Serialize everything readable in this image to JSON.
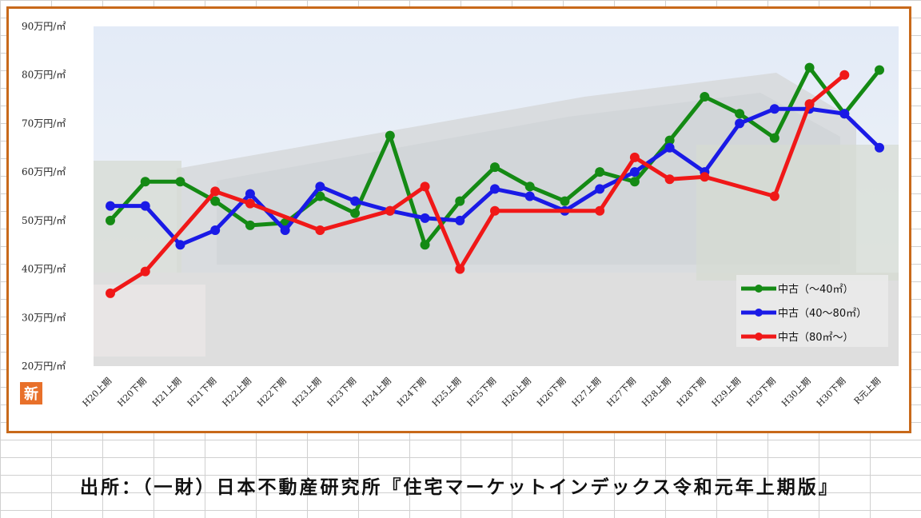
{
  "chart_data": {
    "type": "line",
    "categories": [
      "H20上期",
      "H20下期",
      "H21上期",
      "H21下期",
      "H22上期",
      "H22下期",
      "H23上期",
      "H23下期",
      "H24上期",
      "H24下期",
      "H25上期",
      "H25下期",
      "H26上期",
      "H26下期",
      "H27上期",
      "H27下期",
      "H28上期",
      "H28下期",
      "H29上期",
      "H29下期",
      "H30上期",
      "H30下期",
      "R元上期"
    ],
    "y_ticks": [
      "20万円/㎡",
      "30万円/㎡",
      "40万円/㎡",
      "50万円/㎡",
      "60万円/㎡",
      "70万円/㎡",
      "80万円/㎡",
      "90万円/㎡"
    ],
    "ylim": [
      20,
      90
    ],
    "legend_position": "right",
    "series": [
      {
        "name": "中古（～40㎡）",
        "color": "#148a14",
        "values": [
          50,
          58,
          58,
          54,
          49,
          49.5,
          55,
          51.5,
          67.5,
          45,
          54,
          61,
          57,
          54,
          60,
          58,
          66.5,
          75.5,
          72,
          67,
          81.5,
          72,
          81
        ]
      },
      {
        "name": "中古（40～80㎡）",
        "color": "#1a1ae6",
        "values": [
          53,
          53,
          45,
          48,
          55.5,
          48,
          57,
          54,
          52,
          50.5,
          50,
          56.5,
          55,
          52,
          56.5,
          60,
          65,
          60,
          70,
          73,
          73,
          72,
          65
        ]
      },
      {
        "name": "中古（80㎡～）",
        "color": "#f01818",
        "values": [
          35,
          39.5,
          null,
          56,
          53.5,
          null,
          48,
          null,
          52,
          57,
          40,
          52,
          null,
          null,
          52,
          63,
          58.5,
          59,
          null,
          55,
          74,
          80,
          null
        ]
      }
    ]
  },
  "logo_text": "新",
  "source": "出所：（一財）日本不動産研究所『住宅マーケットインデックス令和元年上期版』"
}
